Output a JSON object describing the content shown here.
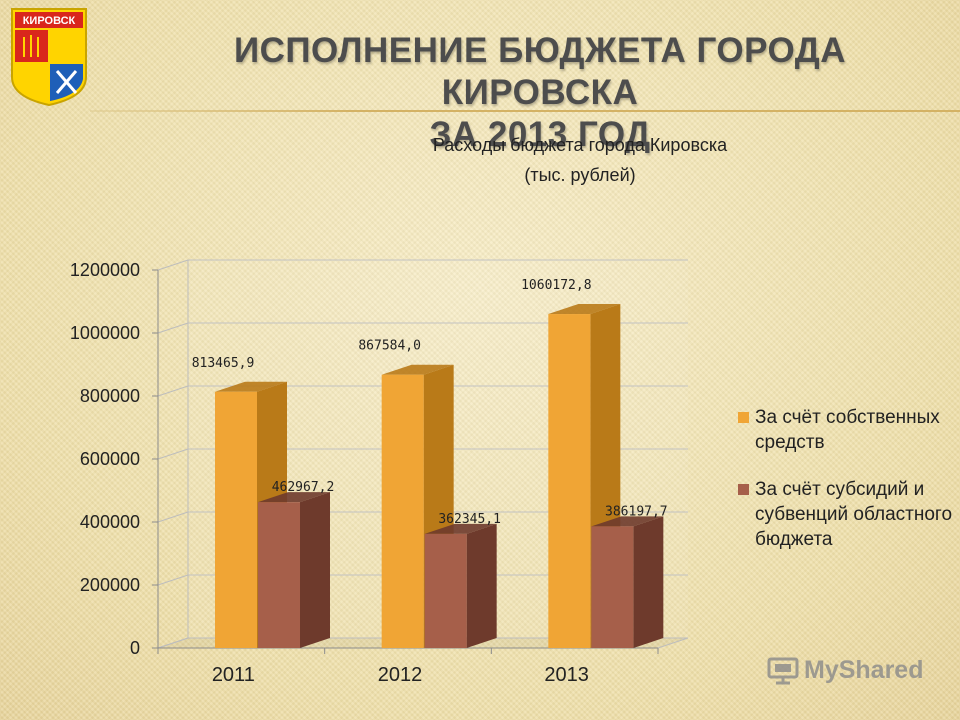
{
  "slide": {
    "title_line1": "ИСПОЛНЕНИЕ  БЮДЖЕТА  ГОРОДА КИРОВСКА",
    "title_line2": "ЗА 2013 ГОД",
    "emblem_text": "КИРОВСК",
    "watermark": "MyShared"
  },
  "colors": {
    "own_funds": "#f0a535",
    "own_funds_side": "#b97a18",
    "subsidies": "#a65f4a",
    "subsidies_side": "#6e3a2c"
  },
  "chart_data": {
    "type": "bar",
    "title_line1": "Расходы бюджета города Кировска",
    "title_line2": "(тыс. рублей)",
    "categories": [
      "2011",
      "2012",
      "2013"
    ],
    "series": [
      {
        "name": "За счёт собственных средств",
        "values": [
          813465.9,
          867584.0,
          1060172.8
        ],
        "labels": [
          "813465,9",
          "867584,0",
          "1060172,8"
        ]
      },
      {
        "name": "За счёт субсидий и субвенций областного бюджета",
        "values": [
          462967.2,
          362345.1,
          386197.7
        ],
        "labels": [
          "462967,2",
          "362345,1",
          "386197,7"
        ]
      }
    ],
    "ylim": [
      0,
      1200000
    ],
    "yticks": [
      "0",
      "200000",
      "400000",
      "600000",
      "800000",
      "1000000",
      "1200000"
    ],
    "grid": true,
    "legend_position": "right",
    "style": "3d-columns"
  }
}
